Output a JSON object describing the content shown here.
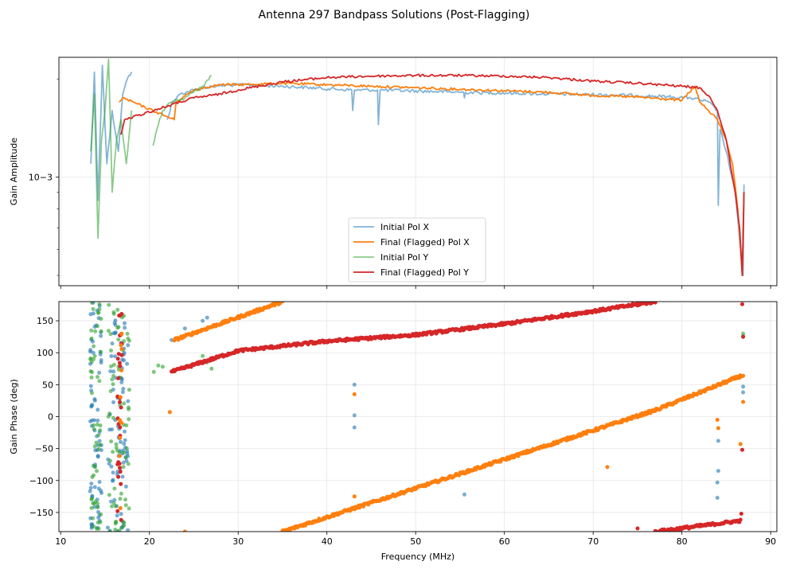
{
  "figure": {
    "title": "Antenna 297 Bandpass Solutions (Post-Flagging)"
  },
  "colors": {
    "pol_x_initial": "#1f77b4",
    "pol_x_final": "#ff7f0e",
    "pol_y_initial": "#2ca02c",
    "pol_y_final": "#d62728",
    "grid": "#e6e6e6"
  },
  "chart_data": [
    {
      "type": "line",
      "title": "Antenna 297 Bandpass Solutions (Post-Flagging)",
      "xlabel": "Frequency (MHz)",
      "ylabel": "Gain Amplitude",
      "yscale": "log",
      "xlim": [
        9.8,
        90.7
      ],
      "ylim": [
        0.000465,
        0.00233
      ],
      "y_tick_label": "10−3",
      "y_tick_value": 0.001,
      "grid": true,
      "legend_position": "lower center",
      "series": [
        {
          "name": "Initial Pol X",
          "color": "#1f77b4",
          "points": [
            [
              13.4,
              0.0011
            ],
            [
              13.8,
              0.0021
            ],
            [
              14.2,
              0.00085
            ],
            [
              14.7,
              0.0022
            ],
            [
              15.2,
              0.0011
            ],
            [
              15.8,
              0.0016
            ],
            [
              16.5,
              0.0012
            ],
            [
              17.0,
              0.0018
            ],
            [
              17.5,
              0.002
            ],
            [
              18.0,
              0.0021
            ],
            [
              22.0,
              0.0015
            ],
            [
              22.6,
              0.0017
            ],
            [
              23.5,
              0.0018
            ],
            [
              25.0,
              0.00185
            ],
            [
              27.0,
              0.0019
            ],
            [
              30.0,
              0.00192
            ],
            [
              35.0,
              0.0019
            ],
            [
              42.8,
              0.00185
            ],
            [
              42.9,
              0.0016
            ],
            [
              43.1,
              0.00185
            ],
            [
              45.7,
              0.00185
            ],
            [
              45.8,
              0.00145
            ],
            [
              46.0,
              0.00185
            ],
            [
              55.4,
              0.00182
            ],
            [
              55.5,
              0.00175
            ],
            [
              55.6,
              0.00182
            ],
            [
              65.0,
              0.0018
            ],
            [
              75.0,
              0.00178
            ],
            [
              81.0,
              0.00175
            ],
            [
              83.0,
              0.0017
            ],
            [
              84.0,
              0.0016
            ],
            [
              84.1,
              0.00082
            ],
            [
              84.3,
              0.0014
            ],
            [
              85.0,
              0.0012
            ],
            [
              86.0,
              0.0009
            ],
            [
              86.9,
              0.0005
            ],
            [
              87.0,
              0.00095
            ]
          ]
        },
        {
          "name": "Final (Flagged) Pol X",
          "color": "#ff7f0e",
          "points": [
            [
              16.6,
              0.0017
            ],
            [
              17.0,
              0.00175
            ],
            [
              22.8,
              0.0015
            ],
            [
              23.0,
              0.0017
            ],
            [
              25.0,
              0.00185
            ],
            [
              27.0,
              0.0019
            ],
            [
              28.0,
              0.00192
            ],
            [
              30.0,
              0.00192
            ],
            [
              35.0,
              0.00194
            ],
            [
              40.0,
              0.00192
            ],
            [
              45.0,
              0.0019
            ],
            [
              50.0,
              0.00188
            ],
            [
              55.0,
              0.00186
            ],
            [
              60.0,
              0.00184
            ],
            [
              65.0,
              0.00182
            ],
            [
              70.0,
              0.00178
            ],
            [
              75.0,
              0.00176
            ],
            [
              80.0,
              0.00172
            ],
            [
              81.5,
              0.0019
            ],
            [
              82.0,
              0.0017
            ],
            [
              83.0,
              0.0016
            ],
            [
              84.0,
              0.0015
            ],
            [
              85.0,
              0.0013
            ],
            [
              85.7,
              0.0011
            ],
            [
              86.3,
              0.0008
            ],
            [
              86.8,
              0.0005
            ],
            [
              87.0,
              0.0009
            ]
          ]
        },
        {
          "name": "Initial Pol Y",
          "color": "#2ca02c",
          "points": [
            [
              13.4,
              0.0012
            ],
            [
              13.8,
              0.0018
            ],
            [
              14.2,
              0.00065
            ],
            [
              14.6,
              0.0013
            ],
            [
              15.0,
              0.0016
            ],
            [
              15.4,
              0.0023
            ],
            [
              15.8,
              0.0009
            ],
            [
              16.3,
              0.0013
            ],
            [
              16.8,
              0.0015
            ],
            [
              17.4,
              0.0011
            ],
            [
              18.0,
              0.0016
            ],
            [
              20.4,
              0.00125
            ],
            [
              21.0,
              0.00145
            ],
            [
              21.5,
              0.0016
            ],
            [
              22.5,
              0.0017
            ],
            [
              24.0,
              0.00175
            ],
            [
              26.0,
              0.0019
            ],
            [
              27.0,
              0.00205
            ]
          ]
        },
        {
          "name": "Final (Flagged) Pol Y",
          "color": "#d62728",
          "points": [
            [
              16.8,
              0.00135
            ],
            [
              17.2,
              0.0015
            ],
            [
              23.5,
              0.0017
            ],
            [
              25.0,
              0.00175
            ],
            [
              27.0,
              0.00178
            ],
            [
              28.0,
              0.0018
            ],
            [
              30.0,
              0.00185
            ],
            [
              35.0,
              0.00196
            ],
            [
              40.0,
              0.00202
            ],
            [
              45.0,
              0.00204
            ],
            [
              50.0,
              0.00205
            ],
            [
              55.0,
              0.00205
            ],
            [
              60.0,
              0.00204
            ],
            [
              65.0,
              0.00202
            ],
            [
              70.0,
              0.00197
            ],
            [
              75.0,
              0.00194
            ],
            [
              80.0,
              0.0019
            ],
            [
              82.0,
              0.00188
            ],
            [
              83.0,
              0.00178
            ],
            [
              84.0,
              0.0016
            ],
            [
              85.0,
              0.0013
            ],
            [
              86.0,
              0.0009
            ],
            [
              86.5,
              0.0007
            ],
            [
              86.8,
              0.0005
            ],
            [
              87.0,
              0.0009
            ]
          ]
        }
      ]
    },
    {
      "type": "scatter",
      "xlabel": "Frequency (MHz)",
      "ylabel": "Gain Phase (deg)",
      "xlim": [
        9.8,
        90.7
      ],
      "ylim": [
        -180,
        180
      ],
      "x_ticks": [
        10,
        20,
        30,
        40,
        50,
        60,
        70,
        80,
        90
      ],
      "y_ticks": [
        -150,
        -100,
        -50,
        0,
        50,
        100,
        150
      ],
      "grid": true,
      "series": [
        {
          "name": "Initial Pol X",
          "color": "#1f77b4",
          "points": [
            [
              22.5,
              120
            ],
            [
              24.0,
              138
            ],
            [
              26.0,
              150
            ],
            [
              26.5,
              155
            ],
            [
              43.1,
              2
            ],
            [
              43.1,
              -17
            ],
            [
              43.1,
              50
            ],
            [
              55.5,
              -122
            ],
            [
              84.0,
              -127
            ],
            [
              84.0,
              -103
            ],
            [
              84.1,
              -85
            ],
            [
              84.1,
              -38
            ],
            [
              86.9,
              38
            ],
            [
              86.9,
              47
            ]
          ]
        },
        {
          "name": "Final (Flagged) Pol X",
          "color": "#ff7f0e",
          "trend_segments": [
            {
              "from": [
                22.8,
                120
              ],
              "to": [
                35.0,
                180
              ]
            },
            {
              "from": [
                35.0,
                -180
              ],
              "to": [
                77.0,
                10
              ]
            },
            {
              "from": [
                77.0,
                10
              ],
              "to": [
                86.9,
                65
              ]
            }
          ],
          "points": [
            [
              22.3,
              7
            ],
            [
              24.0,
              -180
            ],
            [
              43.1,
              35
            ],
            [
              43.1,
              -125
            ],
            [
              71.6,
              -79
            ],
            [
              84.0,
              -5
            ],
            [
              84.1,
              -18
            ],
            [
              86.6,
              -43
            ],
            [
              86.9,
              23
            ]
          ]
        },
        {
          "name": "Initial Pol Y",
          "color": "#2ca02c",
          "points": [
            [
              20.5,
              70
            ],
            [
              21.0,
              80
            ],
            [
              21.5,
              78
            ],
            [
              26.0,
              95
            ],
            [
              26.5,
              85
            ],
            [
              27.0,
              75
            ],
            [
              86.9,
              130
            ],
            [
              86.9,
              126
            ]
          ]
        },
        {
          "name": "Final (Flagged) Pol Y",
          "color": "#d62728",
          "trend_segments": [
            {
              "from": [
                22.5,
                70
              ],
              "to": [
                30.0,
                103
              ]
            },
            {
              "from": [
                30.0,
                103
              ],
              "to": [
                40.0,
                118
              ]
            },
            {
              "from": [
                40.0,
                118
              ],
              "to": [
                50.0,
                128
              ]
            },
            {
              "from": [
                50.0,
                128
              ],
              "to": [
                60.0,
                145
              ]
            },
            {
              "from": [
                60.0,
                145
              ],
              "to": [
                70.0,
                165
              ]
            },
            {
              "from": [
                70.0,
                165
              ],
              "to": [
                77.0,
                180
              ]
            },
            {
              "from": [
                77.0,
                -180
              ],
              "to": [
                86.6,
                -163
              ]
            }
          ],
          "points": [
            [
              75.0,
              -175
            ],
            [
              86.7,
              -152
            ],
            [
              86.8,
              176
            ],
            [
              86.8,
              -52
            ],
            [
              86.9,
              125
            ]
          ]
        }
      ]
    }
  ]
}
